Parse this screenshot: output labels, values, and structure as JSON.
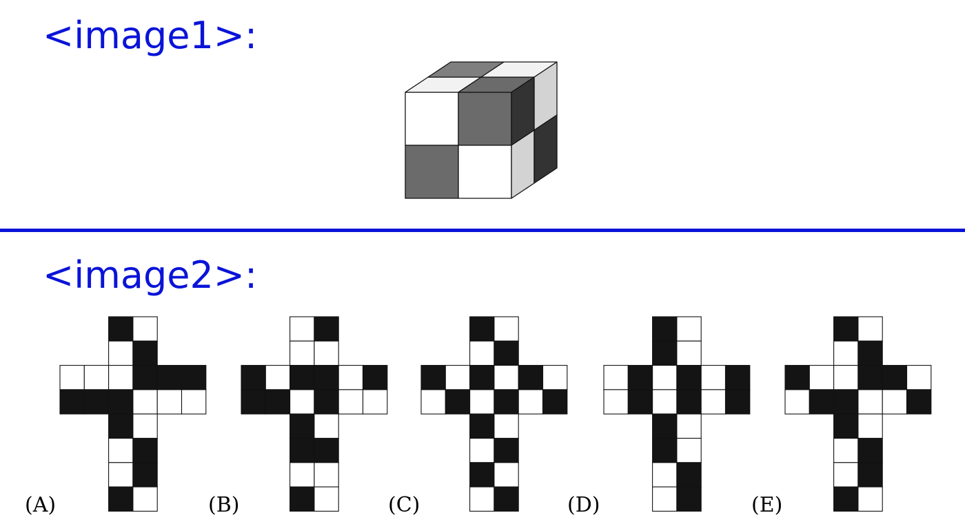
{
  "image1": {
    "label": "<image1>:",
    "cube": {
      "front": [
        [
          "#ffffff",
          "#6b6b6b"
        ],
        [
          "#6b6b6b",
          "#ffffff"
        ]
      ],
      "top": [
        [
          "#f2f2f2",
          "#6b6b6b"
        ],
        [
          "#7f7f7f",
          "#f2f2f2"
        ]
      ],
      "side": [
        [
          "#333333",
          "#d3d3d3"
        ],
        [
          "#d3d3d3",
          "#333333"
        ]
      ]
    }
  },
  "image2": {
    "label": "<image2>:",
    "options": [
      {
        "label": "(A)",
        "cells": [
          [
            0,
            0,
            1,
            0,
            0,
            0
          ],
          [
            0,
            0,
            0,
            1,
            0,
            0
          ],
          [
            0,
            0,
            0,
            1,
            1,
            1
          ],
          [
            1,
            1,
            1,
            0,
            0,
            0
          ],
          [
            0,
            0,
            1,
            0,
            0,
            0
          ],
          [
            0,
            0,
            0,
            1,
            0,
            0
          ],
          [
            0,
            0,
            0,
            1,
            0,
            0
          ],
          [
            0,
            0,
            1,
            0,
            0,
            0
          ]
        ]
      },
      {
        "label": "(B)",
        "cells": [
          [
            0,
            0,
            0,
            1,
            0,
            0
          ],
          [
            0,
            0,
            0,
            0,
            0,
            0
          ],
          [
            1,
            0,
            1,
            1,
            0,
            1
          ],
          [
            1,
            1,
            0,
            1,
            0,
            0
          ],
          [
            0,
            0,
            1,
            0,
            0,
            0
          ],
          [
            0,
            0,
            1,
            1,
            0,
            0
          ],
          [
            0,
            0,
            0,
            0,
            0,
            0
          ],
          [
            0,
            0,
            1,
            0,
            0,
            0
          ]
        ]
      },
      {
        "label": "(C)",
        "cells": [
          [
            0,
            0,
            1,
            0,
            0,
            0
          ],
          [
            0,
            0,
            0,
            1,
            0,
            0
          ],
          [
            1,
            0,
            1,
            0,
            1,
            0
          ],
          [
            0,
            1,
            0,
            1,
            0,
            1
          ],
          [
            0,
            0,
            1,
            0,
            0,
            0
          ],
          [
            0,
            0,
            0,
            1,
            0,
            0
          ],
          [
            0,
            0,
            1,
            0,
            0,
            0
          ],
          [
            0,
            0,
            0,
            1,
            0,
            0
          ]
        ]
      },
      {
        "label": "(D)",
        "cells": [
          [
            0,
            0,
            1,
            0,
            0,
            0
          ],
          [
            0,
            0,
            1,
            0,
            0,
            0
          ],
          [
            0,
            1,
            0,
            1,
            0,
            1
          ],
          [
            0,
            1,
            0,
            1,
            0,
            1
          ],
          [
            0,
            0,
            1,
            0,
            0,
            0
          ],
          [
            0,
            0,
            1,
            0,
            0,
            0
          ],
          [
            0,
            0,
            0,
            1,
            0,
            0
          ],
          [
            0,
            0,
            0,
            1,
            0,
            0
          ]
        ]
      },
      {
        "label": "(E)",
        "cells": [
          [
            0,
            0,
            1,
            0,
            0,
            0
          ],
          [
            0,
            0,
            0,
            1,
            0,
            0
          ],
          [
            1,
            0,
            0,
            1,
            1,
            0
          ],
          [
            0,
            1,
            1,
            0,
            0,
            1
          ],
          [
            0,
            0,
            1,
            0,
            0,
            0
          ],
          [
            0,
            0,
            0,
            1,
            0,
            0
          ],
          [
            0,
            0,
            0,
            1,
            0,
            0
          ],
          [
            0,
            0,
            1,
            0,
            0,
            0
          ]
        ]
      }
    ]
  }
}
